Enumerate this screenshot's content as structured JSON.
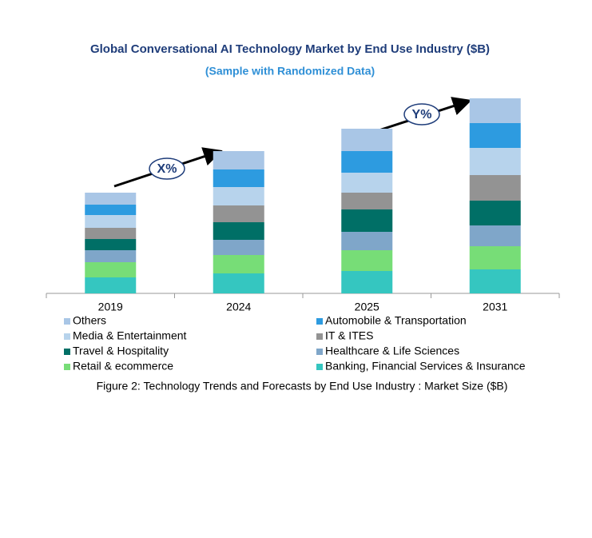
{
  "chart_data": {
    "type": "stacked-bar",
    "title": "Global Conversational AI Technology Market by End Use Industry ($B)",
    "subtitle": "(Sample with Randomized Data)",
    "caption": "Figure 2: Technology  Trends  and Forecasts by End Use Industry  : Market Size ($B)",
    "annotations": [
      "X%",
      "Y%"
    ],
    "categories": [
      "2019",
      "2024",
      "2025",
      "2031"
    ],
    "series": [
      {
        "name": "Banking, Financial Services & Insurance",
        "color": "#35c6c0",
        "values": [
          20,
          25,
          28,
          30
        ]
      },
      {
        "name": "Retail & ecommerce",
        "color": "#77dd77",
        "values": [
          19,
          23,
          26,
          29
        ]
      },
      {
        "name": "Healthcare & Life Sciences",
        "color": "#7fa6c9",
        "values": [
          15,
          19,
          23,
          26
        ]
      },
      {
        "name": "Travel & Hospitality",
        "color": "#006f66",
        "values": [
          14,
          22,
          28,
          31
        ]
      },
      {
        "name": "IT & ITES",
        "color": "#939393",
        "values": [
          14,
          21,
          21,
          32
        ]
      },
      {
        "name": "Media & Entertainment",
        "color": "#b7d3ec",
        "values": [
          16,
          23,
          25,
          34
        ]
      },
      {
        "name": "Automobile & Transportation",
        "color": "#2d9be0",
        "values": [
          13,
          22,
          27,
          31
        ]
      },
      {
        "name": "Others",
        "color": "#a9c6e6",
        "values": [
          15,
          23,
          28,
          31
        ]
      }
    ]
  }
}
